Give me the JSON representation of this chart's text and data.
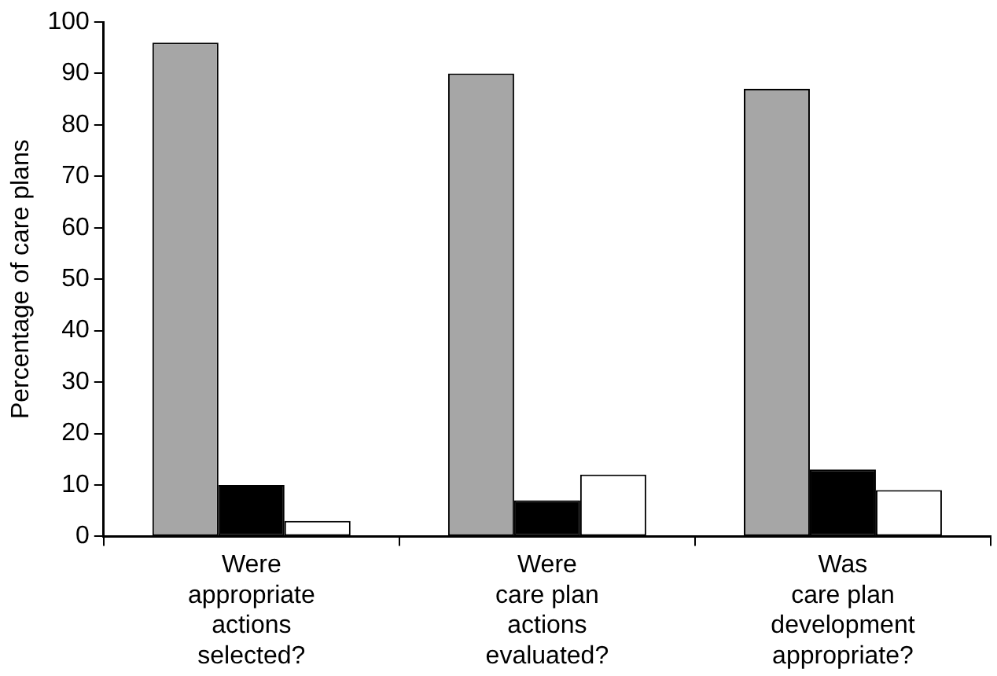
{
  "chart_data": {
    "type": "bar",
    "ylabel": "Percentage of care plans",
    "categories": [
      "Were\nappropriate\nactions\nselected?",
      "Were\ncare plan\nactions\nevaluated?",
      "Was\ncare plan\ndevelopment\nappropriate?"
    ],
    "series": [
      {
        "color": "#a6a6a6",
        "values": [
          96,
          90,
          87
        ]
      },
      {
        "color": "#000000",
        "values": [
          10,
          7,
          13
        ]
      },
      {
        "color": "#ffffff",
        "values": [
          3,
          12,
          9
        ]
      }
    ],
    "ylim": [
      0,
      100
    ],
    "yticks": [
      0,
      10,
      20,
      30,
      40,
      50,
      60,
      70,
      80,
      90,
      100
    ],
    "grid": false,
    "legend": false
  }
}
